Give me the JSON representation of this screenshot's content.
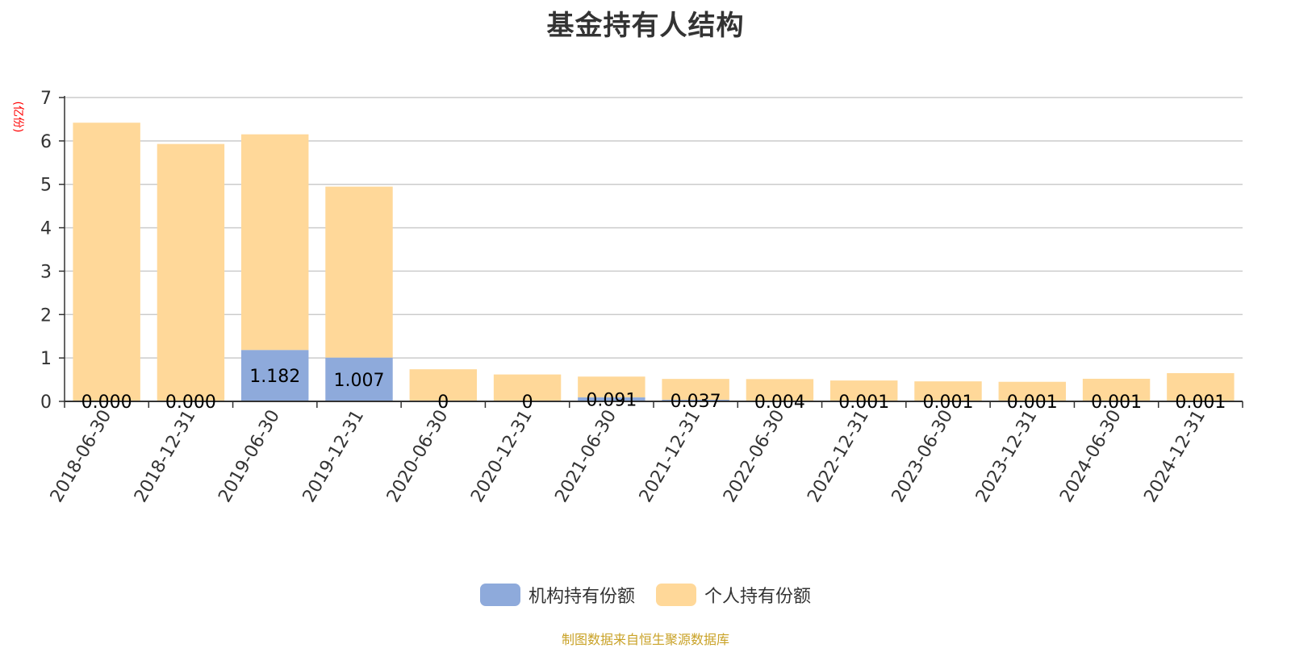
{
  "chart_data": {
    "type": "bar",
    "stacked": true,
    "title": "基金持有人结构",
    "ylabel": "(亿份)",
    "ylim": [
      0,
      7
    ],
    "yticks": [
      "0",
      "1",
      "2",
      "3",
      "4",
      "5",
      "6",
      "7"
    ],
    "grid": true,
    "legend_position": "bottom-center",
    "categories": [
      "2018-06-30",
      "2018-12-31",
      "2019-06-30",
      "2019-12-31",
      "2020-06-30",
      "2020-12-31",
      "2021-06-30",
      "2021-12-31",
      "2022-06-30",
      "2022-12-31",
      "2023-06-30",
      "2023-12-31",
      "2024-06-30",
      "2024-12-31"
    ],
    "series": [
      {
        "name": "机构持有份额",
        "color": "#8eaadb",
        "values": [
          0.0,
          0.0,
          1.182,
          1.007,
          0,
          0,
          0.091,
          0.037,
          0.004,
          0.001,
          0.001,
          0.001,
          0.001,
          0.001
        ],
        "labels": [
          "0.000",
          "0.000",
          "1.182",
          "1.007",
          "0",
          "0",
          "0.091",
          "0.037",
          "0.004",
          "0.001",
          "0.001",
          "0.001",
          "0.001",
          "0.001"
        ]
      },
      {
        "name": "个人持有份额",
        "color": "#ffd899",
        "values": [
          6.42,
          5.93,
          4.97,
          3.94,
          0.74,
          0.62,
          0.48,
          0.48,
          0.51,
          0.48,
          0.46,
          0.45,
          0.52,
          0.65
        ]
      }
    ]
  },
  "source_note": "制图数据来自恒生聚源数据库"
}
